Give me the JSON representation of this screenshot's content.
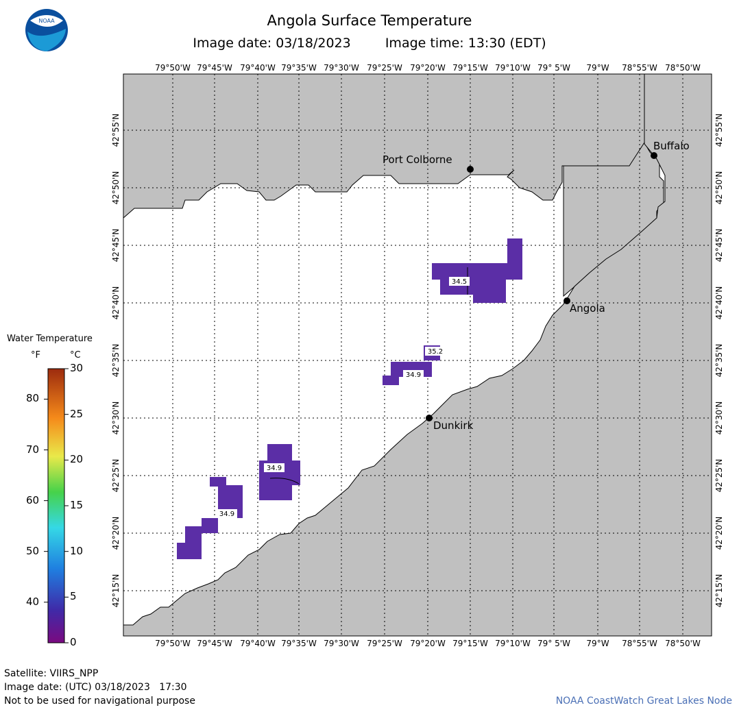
{
  "header": {
    "title": "Angola Surface Temperature",
    "image_date_label": "Image date: 03/18/2023",
    "image_time_label": "Image time: 13:30 (EDT)"
  },
  "logo": {
    "text": "NOAA"
  },
  "axes": {
    "lon_labels": [
      "79°50'W",
      "79°45'W",
      "79°40'W",
      "79°35'W",
      "79°30'W",
      "79°25'W",
      "79°20'W",
      "79°15'W",
      "79°10'W",
      "79° 5'W",
      "79°W",
      "78°55'W",
      "78°50'W"
    ],
    "lat_labels": [
      "42°55'N",
      "42°50'N",
      "42°45'N",
      "42°40'N",
      "42°35'N",
      "42°30'N",
      "42°25'N",
      "42°20'N",
      "42°15'N"
    ]
  },
  "places": [
    {
      "name": "Buffalo"
    },
    {
      "name": "Port Colborne"
    },
    {
      "name": "Angola"
    },
    {
      "name": "Dunkirk"
    }
  ],
  "temperature_labels": [
    "34.5",
    "35.2",
    "34.9",
    "34.9",
    "34.9"
  ],
  "colors": {
    "land": "#c0c0c0",
    "water": "#ffffff",
    "cold_pixel": "#5b2ea6",
    "credit": "#4a6fb5"
  },
  "legend": {
    "title": "Water Temperature",
    "unit_f": "°F",
    "unit_c": "°C",
    "f_ticks": [
      "80",
      "70",
      "60",
      "50",
      "40"
    ],
    "c_ticks": [
      "30",
      "25",
      "20",
      "15",
      "10",
      "5",
      "0"
    ]
  },
  "footer": {
    "satellite": "Satellite: VIIRS_NPP",
    "utc_date": "Image date: (UTC) 03/18/2023   17:30",
    "disclaimer": "Not to be used for navigational purpose",
    "credit": "NOAA CoastWatch Great Lakes Node"
  }
}
